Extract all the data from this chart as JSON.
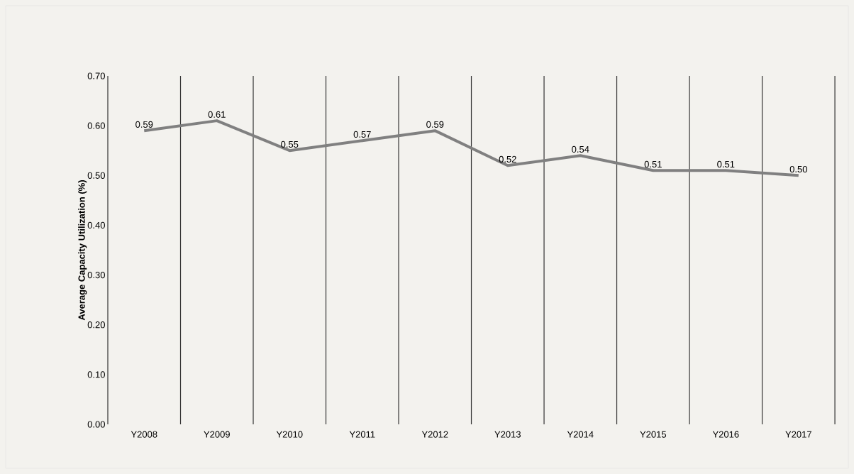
{
  "chart_data": {
    "type": "line",
    "ylabel": "Average Capacity Utilization (%)",
    "categories": [
      "Y2008",
      "Y2009",
      "Y2010",
      "Y2011",
      "Y2012",
      "Y2013",
      "Y2014",
      "Y2015",
      "Y2016",
      "Y2017"
    ],
    "values": [
      0.59,
      0.61,
      0.55,
      0.57,
      0.59,
      0.52,
      0.54,
      0.51,
      0.51,
      0.5
    ],
    "value_labels": [
      "0.59",
      "0.61",
      "0.55",
      "0.57",
      "0.59",
      "0.52",
      "0.54",
      "0.51",
      "0.51",
      "0.50"
    ],
    "color": "#808080",
    "ylim": [
      0,
      0.7
    ],
    "yticks": [
      {
        "value": 0,
        "label": "0.00"
      },
      {
        "value": 0.1,
        "label": "0.10"
      },
      {
        "value": 0.2,
        "label": "0.20"
      },
      {
        "value": 0.3,
        "label": "0.30"
      },
      {
        "value": 0.4,
        "label": "0.40"
      },
      {
        "value": 0.5,
        "label": "0.50"
      },
      {
        "value": 0.6,
        "label": "0.60"
      },
      {
        "value": 0.7,
        "label": "0.70"
      }
    ],
    "grid": "x",
    "marker": "none",
    "line_style": "solid"
  }
}
